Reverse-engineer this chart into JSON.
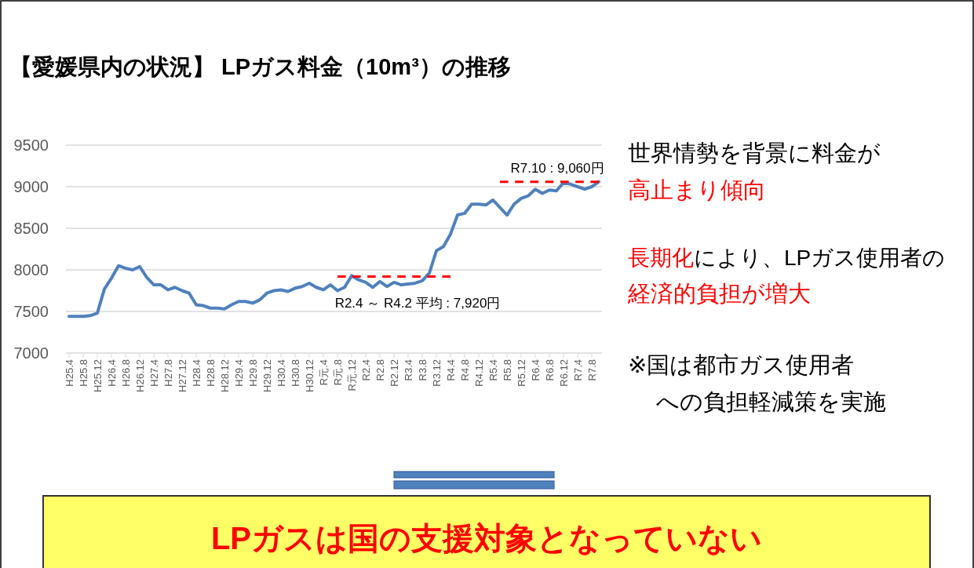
{
  "chart_data": {
    "type": "line",
    "title": "【愛媛県内の状況】 LPガス料金（10m³）の推移",
    "categories": [
      "H25.4",
      null,
      "H25.8",
      null,
      "H25.12",
      null,
      "H26.4",
      null,
      "H26.8",
      null,
      "H26.12",
      null,
      "H27.4",
      null,
      "H27.8",
      null,
      "H27.12",
      null,
      "H28.4",
      null,
      "H28.8",
      null,
      "H28.12",
      null,
      "H29.4",
      null,
      "H29.8",
      null,
      "H29.12",
      null,
      "H30.4",
      null,
      "H30.8",
      null,
      "H30.12",
      null,
      "R元.4",
      null,
      "R元.8",
      null,
      "R元.12",
      null,
      "R2.4",
      null,
      "R2.8",
      null,
      "R2.12",
      null,
      "R3.4",
      null,
      "R3.8",
      null,
      "R3.12",
      null,
      "R4.4",
      null,
      "R4.8",
      null,
      "R4.12",
      null,
      "R5.4",
      null,
      "R5.8",
      null,
      "R5.12",
      null,
      "R6.4",
      null,
      "R6.8",
      null,
      "R6.12",
      null,
      "R7.4",
      null,
      "R7.8",
      null
    ],
    "series": [
      {
        "color": "#4f81bd",
        "line_style": "solid",
        "values": [
          7440,
          7440,
          7440,
          7450,
          7480,
          7770,
          7900,
          8050,
          8020,
          8000,
          8040,
          7910,
          7820,
          7820,
          7760,
          7790,
          7750,
          7720,
          7580,
          7570,
          7540,
          7540,
          7530,
          7580,
          7620,
          7620,
          7600,
          7640,
          7720,
          7750,
          7760,
          7740,
          7780,
          7800,
          7840,
          7790,
          7760,
          7820,
          7750,
          7790,
          7930,
          7880,
          7850,
          7790,
          7860,
          7800,
          7850,
          7820,
          7830,
          7840,
          7870,
          7960,
          8230,
          8280,
          8430,
          8660,
          8680,
          8790,
          8790,
          8780,
          8840,
          8750,
          8660,
          8790,
          8860,
          8890,
          8970,
          8920,
          8960,
          8950,
          9050,
          9030,
          9000,
          8970,
          9000,
          9060
        ]
      },
      {
        "color": "#ff0000",
        "line_style": "dashed",
        "values": [
          null,
          null,
          null,
          null,
          null,
          null,
          null,
          null,
          null,
          null,
          null,
          null,
          null,
          null,
          null,
          null,
          null,
          null,
          null,
          null,
          null,
          null,
          null,
          null,
          null,
          null,
          null,
          null,
          null,
          null,
          null,
          null,
          null,
          null,
          null,
          null,
          null,
          null,
          7920,
          7920,
          7920,
          7920,
          7920,
          7920,
          7920,
          7920,
          7920,
          7920,
          7920,
          7920,
          7920,
          7920,
          7920,
          7920,
          7920,
          null,
          null,
          null,
          null,
          null,
          null,
          null,
          null,
          null,
          null,
          null,
          null,
          null,
          null,
          null,
          null,
          null,
          null,
          null,
          null,
          null
        ]
      },
      {
        "color": "#ff0000",
        "line_style": "dashed",
        "values": [
          null,
          null,
          null,
          null,
          null,
          null,
          null,
          null,
          null,
          null,
          null,
          null,
          null,
          null,
          null,
          null,
          null,
          null,
          null,
          null,
          null,
          null,
          null,
          null,
          null,
          null,
          null,
          null,
          null,
          null,
          null,
          null,
          null,
          null,
          null,
          null,
          null,
          null,
          null,
          null,
          null,
          null,
          null,
          null,
          null,
          null,
          null,
          null,
          null,
          null,
          null,
          null,
          null,
          null,
          null,
          null,
          null,
          null,
          null,
          null,
          null,
          9060,
          9060,
          9060,
          9060,
          9060,
          9060,
          9060,
          9060,
          9060,
          9060,
          9060,
          9060,
          9060,
          9060,
          9060
        ]
      }
    ],
    "ylim": [
      7000,
      9500
    ],
    "yticks": [
      7000,
      7500,
      8000,
      8500,
      9000,
      9500
    ],
    "grid": "y",
    "marker": "none",
    "annotations": [
      {
        "text": "R2.4 ～ R4.2 平均 : 7,920円",
        "x": "R3.4",
        "y": 7920
      },
      {
        "text": "R7.10 : 9,060円",
        "x": "R6.12",
        "y": 9060
      },
      "世界情勢を背景に料金が",
      "高止まり傾向",
      "長期化",
      "により、LPガス使用者の",
      "経済的負担が増大",
      "※国は都市ガス使用者",
      "への負担軽減策を実施",
      "LPガスは国の支援対象となっていない"
    ]
  }
}
